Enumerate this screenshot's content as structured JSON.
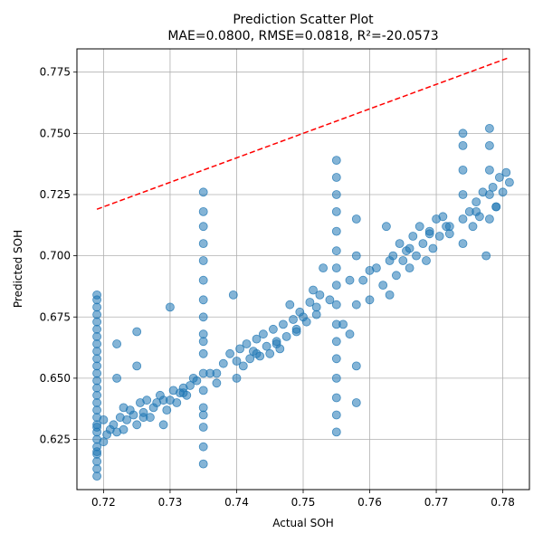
{
  "chart_data": {
    "type": "scatter",
    "title": "Prediction Scatter Plot",
    "subtitle": "MAE=0.0800, RMSE=0.0818, R²=-20.0573",
    "xlabel": "Actual SOH",
    "ylabel": "Predicted SOH",
    "xlim": [
      0.716,
      0.784
    ],
    "ylim": [
      0.6045,
      0.7845
    ],
    "xticks": [
      0.72,
      0.73,
      0.74,
      0.75,
      0.76,
      0.77,
      0.78
    ],
    "xtick_labels": [
      "0.72",
      "0.73",
      "0.74",
      "0.75",
      "0.76",
      "0.77",
      "0.78"
    ],
    "yticks": [
      0.625,
      0.65,
      0.675,
      0.7,
      0.725,
      0.75,
      0.775
    ],
    "ytick_labels": [
      "0.625",
      "0.650",
      "0.675",
      "0.700",
      "0.725",
      "0.750",
      "0.775"
    ],
    "grid": true,
    "colors": {
      "points": "#1f77b4",
      "reference": "#ff0000",
      "grid": "#b0b0b0"
    },
    "reference_line": {
      "style": "dashed",
      "x": [
        0.719,
        0.781
      ],
      "y": [
        0.719,
        0.781
      ]
    },
    "series": [
      {
        "x": [
          0.719,
          0.719,
          0.719,
          0.719,
          0.719,
          0.719,
          0.719,
          0.719,
          0.719,
          0.719,
          0.719,
          0.719,
          0.719,
          0.719,
          0.719,
          0.719,
          0.719,
          0.719,
          0.719,
          0.719,
          0.719,
          0.719,
          0.719,
          0.719,
          0.719,
          0.719,
          0.719,
          0.719,
          0.72,
          0.7205,
          0.721,
          0.7215,
          0.722,
          0.722,
          0.722,
          0.7225,
          0.723,
          0.7235,
          0.724,
          0.7245,
          0.725,
          0.725,
          0.725,
          0.7255,
          0.726,
          0.7265,
          0.727,
          0.7275,
          0.728,
          0.7285,
          0.729,
          0.7295,
          0.73,
          0.73,
          0.7305,
          0.731,
          0.7315,
          0.732,
          0.7325,
          0.733,
          0.7335,
          0.735,
          0.735,
          0.735,
          0.735,
          0.735,
          0.735,
          0.735,
          0.735,
          0.735,
          0.735,
          0.735,
          0.735,
          0.735,
          0.735,
          0.735,
          0.735,
          0.735,
          0.735,
          0.736,
          0.737,
          0.738,
          0.739,
          0.7395,
          0.74,
          0.7405,
          0.741,
          0.7415,
          0.742,
          0.7425,
          0.743,
          0.7435,
          0.744,
          0.7445,
          0.745,
          0.7455,
          0.746,
          0.7465,
          0.747,
          0.7475,
          0.748,
          0.7485,
          0.749,
          0.7495,
          0.75,
          0.7505,
          0.751,
          0.7515,
          0.752,
          0.7525,
          0.753,
          0.755,
          0.755,
          0.755,
          0.755,
          0.755,
          0.755,
          0.755,
          0.755,
          0.755,
          0.755,
          0.755,
          0.755,
          0.755,
          0.755,
          0.755,
          0.755,
          0.756,
          0.757,
          0.758,
          0.758,
          0.758,
          0.758,
          0.758,
          0.759,
          0.76,
          0.761,
          0.762,
          0.7625,
          0.763,
          0.7635,
          0.764,
          0.7645,
          0.765,
          0.7655,
          0.766,
          0.7665,
          0.767,
          0.7675,
          0.768,
          0.7685,
          0.769,
          0.7695,
          0.77,
          0.7705,
          0.771,
          0.7715,
          0.772,
          0.774,
          0.774,
          0.774,
          0.774,
          0.774,
          0.774,
          0.775,
          0.7755,
          0.776,
          0.7765,
          0.777,
          0.7775,
          0.778,
          0.778,
          0.778,
          0.778,
          0.778,
          0.7785,
          0.779,
          0.7795,
          0.78,
          0.7805,
          0.781,
          0.72,
          0.723,
          0.726,
          0.729,
          0.732,
          0.734,
          0.737,
          0.74,
          0.743,
          0.746,
          0.749,
          0.752,
          0.754,
          0.757,
          0.76,
          0.763,
          0.766,
          0.769,
          0.772,
          0.776,
          0.779
        ],
        "y": [
          0.61,
          0.613,
          0.616,
          0.619,
          0.622,
          0.625,
          0.628,
          0.631,
          0.634,
          0.637,
          0.64,
          0.643,
          0.646,
          0.649,
          0.652,
          0.655,
          0.658,
          0.661,
          0.664,
          0.667,
          0.67,
          0.673,
          0.676,
          0.679,
          0.682,
          0.684,
          0.62,
          0.63,
          0.624,
          0.627,
          0.629,
          0.631,
          0.628,
          0.65,
          0.664,
          0.634,
          0.629,
          0.633,
          0.637,
          0.635,
          0.631,
          0.655,
          0.669,
          0.64,
          0.636,
          0.641,
          0.634,
          0.638,
          0.64,
          0.643,
          0.631,
          0.637,
          0.641,
          0.679,
          0.645,
          0.64,
          0.644,
          0.646,
          0.643,
          0.647,
          0.65,
          0.615,
          0.622,
          0.63,
          0.638,
          0.645,
          0.652,
          0.66,
          0.668,
          0.675,
          0.682,
          0.69,
          0.698,
          0.705,
          0.712,
          0.718,
          0.726,
          0.635,
          0.665,
          0.652,
          0.648,
          0.656,
          0.66,
          0.684,
          0.65,
          0.662,
          0.655,
          0.664,
          0.658,
          0.661,
          0.666,
          0.659,
          0.668,
          0.663,
          0.66,
          0.67,
          0.665,
          0.662,
          0.672,
          0.667,
          0.68,
          0.674,
          0.669,
          0.677,
          0.675,
          0.673,
          0.681,
          0.686,
          0.679,
          0.684,
          0.695,
          0.635,
          0.642,
          0.65,
          0.658,
          0.665,
          0.672,
          0.68,
          0.688,
          0.695,
          0.702,
          0.71,
          0.718,
          0.725,
          0.732,
          0.739,
          0.628,
          0.672,
          0.668,
          0.64,
          0.655,
          0.68,
          0.7,
          0.715,
          0.69,
          0.682,
          0.695,
          0.688,
          0.712,
          0.684,
          0.7,
          0.692,
          0.705,
          0.698,
          0.702,
          0.695,
          0.708,
          0.7,
          0.712,
          0.705,
          0.698,
          0.71,
          0.703,
          0.715,
          0.708,
          0.716,
          0.712,
          0.709,
          0.705,
          0.715,
          0.725,
          0.735,
          0.745,
          0.75,
          0.718,
          0.712,
          0.722,
          0.716,
          0.726,
          0.7,
          0.715,
          0.725,
          0.735,
          0.745,
          0.752,
          0.728,
          0.72,
          0.732,
          0.726,
          0.734,
          0.73,
          0.633,
          0.638,
          0.634,
          0.641,
          0.644,
          0.649,
          0.652,
          0.657,
          0.66,
          0.664,
          0.67,
          0.676,
          0.682,
          0.69,
          0.694,
          0.698,
          0.703,
          0.709,
          0.712,
          0.718,
          0.72
        ]
      }
    ]
  }
}
